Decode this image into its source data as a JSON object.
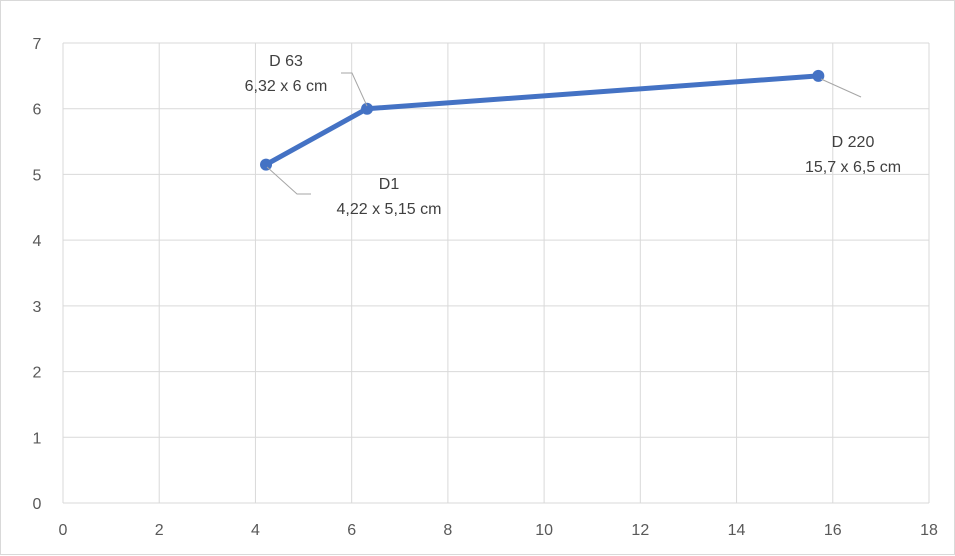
{
  "chart_data": {
    "type": "line",
    "title": "",
    "xlabel": "",
    "ylabel": "",
    "xlim": [
      0,
      18
    ],
    "ylim": [
      0,
      7
    ],
    "x_ticks": [
      "0",
      "2",
      "4",
      "6",
      "8",
      "10",
      "12",
      "14",
      "16",
      "18"
    ],
    "y_ticks": [
      "0",
      "1",
      "2",
      "3",
      "4",
      "5",
      "6",
      "7"
    ],
    "grid": true,
    "legend": "none",
    "series": [
      {
        "color": "#4472c4",
        "points": [
          {
            "x": 4.22,
            "y": 5.15,
            "label_line1": "D1",
            "label_line2": "4,22 x 5,15 cm"
          },
          {
            "x": 6.32,
            "y": 6.0,
            "label_line1": "D 63",
            "label_line2": "6,32 x 6 cm"
          },
          {
            "x": 15.7,
            "y": 6.5,
            "label_line1": "D 220",
            "label_line2": "15,7 x 6,5 cm"
          }
        ]
      }
    ]
  }
}
